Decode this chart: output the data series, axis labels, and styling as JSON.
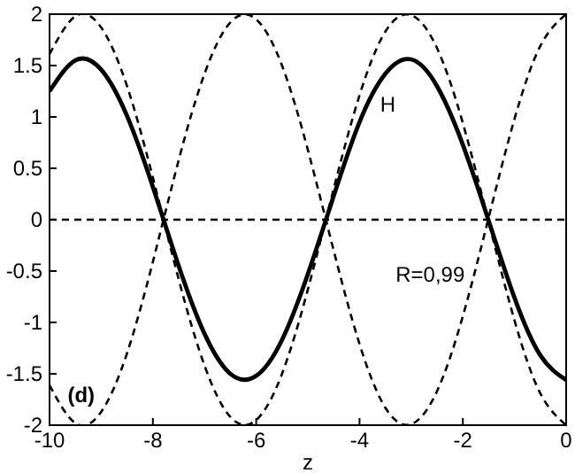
{
  "chart_data": {
    "type": "line",
    "xlabel": "z",
    "xlim": [
      -10,
      0
    ],
    "ylim": [
      -2,
      2
    ],
    "xticks": [
      -10,
      -8,
      -6,
      -4,
      -2,
      0
    ],
    "yticks": [
      -2,
      -1.5,
      -1,
      -0.5,
      0,
      0.5,
      1,
      1.5,
      2
    ],
    "x": [
      -10,
      -9.5,
      -9,
      -8.5,
      -8,
      -7.5,
      -7,
      -6.5,
      -6,
      -5.5,
      -5,
      -4.5,
      -4,
      -3.5,
      -3,
      -2.5,
      -2,
      -1.5,
      -1,
      -0.5,
      0
    ],
    "series": [
      {
        "name": "H",
        "color": "#000000",
        "line_style": "solid",
        "values": [
          1.25,
          1.55,
          1.46,
          1.01,
          0.32,
          -0.45,
          -1.11,
          -1.5,
          -1.52,
          -1.17,
          -0.53,
          0.23,
          0.95,
          1.42,
          1.56,
          1.3,
          0.73,
          -0.01,
          -0.76,
          -1.32,
          -1.56
        ]
      },
      {
        "color": "#000000",
        "line_style": "dashed",
        "values": [
          1.61,
          1.98,
          1.87,
          1.3,
          0.41,
          -0.58,
          -1.42,
          -1.92,
          -1.95,
          -1.5,
          -0.68,
          0.3,
          1.21,
          1.83,
          1.99,
          1.67,
          0.94,
          -0.02,
          -0.98,
          -1.69,
          -2.0
        ]
      },
      {
        "color": "#000000",
        "line_style": "dashed",
        "values": [
          -1.61,
          -1.98,
          -1.87,
          -1.3,
          -0.41,
          0.58,
          1.42,
          1.92,
          1.95,
          1.5,
          0.68,
          -0.3,
          -1.21,
          -1.83,
          -1.99,
          -1.67,
          -0.94,
          0.02,
          0.98,
          1.69,
          2.0
        ]
      }
    ],
    "ref_lines": [
      {
        "axis": "y",
        "value": 0,
        "line_style": "dashed",
        "color": "#000000"
      }
    ],
    "annotations": [
      "R=0,99",
      "(d)"
    ],
    "grid": false,
    "marker": "none"
  }
}
